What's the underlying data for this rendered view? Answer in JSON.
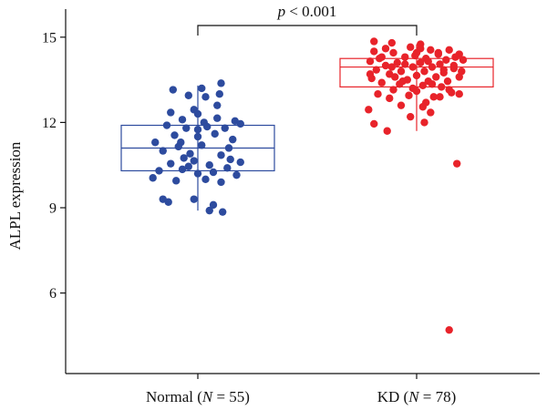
{
  "chart_data": {
    "type": "scatter",
    "subtype": "box-plot-with-jitter",
    "title": "",
    "xlabel": "",
    "ylabel": "ALPL expression",
    "ylim": [
      3.8,
      16.0
    ],
    "yticks": [
      6,
      9,
      12,
      15
    ],
    "annotation": {
      "prefix": "p",
      "text": " < 0.001"
    },
    "colors": {
      "Normal": "#2d4b9e",
      "KD": "#e8232a",
      "axis": "#111111"
    },
    "groups": [
      {
        "name": "Normal",
        "label": "Normal (",
        "n_label": "N = 55",
        "label_close": ")",
        "box": {
          "whisker_low": 8.9,
          "q1": 10.3,
          "median": 11.1,
          "q3": 11.9,
          "whisker_high": 13.3
        },
        "points": [
          {
            "dx": -0.32,
            "y": 13.15
          },
          {
            "dx": 0.05,
            "y": 13.2
          },
          {
            "dx": 0.3,
            "y": 13.38
          },
          {
            "dx": -0.12,
            "y": 12.95
          },
          {
            "dx": 0.1,
            "y": 12.9
          },
          {
            "dx": 0.28,
            "y": 13.0
          },
          {
            "dx": -0.05,
            "y": 12.45
          },
          {
            "dx": 0.0,
            "y": 12.3
          },
          {
            "dx": 0.25,
            "y": 12.6
          },
          {
            "dx": -0.2,
            "y": 12.1
          },
          {
            "dx": 0.08,
            "y": 12.0
          },
          {
            "dx": 0.48,
            "y": 12.05
          },
          {
            "dx": -0.4,
            "y": 11.9
          },
          {
            "dx": -0.15,
            "y": 11.8
          },
          {
            "dx": 0.12,
            "y": 11.85
          },
          {
            "dx": 0.35,
            "y": 11.8
          },
          {
            "dx": 0.55,
            "y": 11.95
          },
          {
            "dx": -0.3,
            "y": 11.55
          },
          {
            "dx": 0.0,
            "y": 11.5
          },
          {
            "dx": 0.22,
            "y": 11.6
          },
          {
            "dx": -0.55,
            "y": 11.3
          },
          {
            "dx": -0.22,
            "y": 11.3
          },
          {
            "dx": 0.05,
            "y": 11.2
          },
          {
            "dx": 0.4,
            "y": 11.1
          },
          {
            "dx": -0.45,
            "y": 11.0
          },
          {
            "dx": -0.1,
            "y": 10.9
          },
          {
            "dx": 0.3,
            "y": 10.85
          },
          {
            "dx": 0.55,
            "y": 10.6
          },
          {
            "dx": -0.35,
            "y": 10.55
          },
          {
            "dx": -0.05,
            "y": 10.65
          },
          {
            "dx": 0.15,
            "y": 10.5
          },
          {
            "dx": 0.42,
            "y": 10.7
          },
          {
            "dx": -0.5,
            "y": 10.3
          },
          {
            "dx": -0.2,
            "y": 10.35
          },
          {
            "dx": 0.0,
            "y": 10.2
          },
          {
            "dx": 0.2,
            "y": 10.25
          },
          {
            "dx": 0.38,
            "y": 10.4
          },
          {
            "dx": -0.58,
            "y": 10.05
          },
          {
            "dx": -0.28,
            "y": 9.95
          },
          {
            "dx": 0.1,
            "y": 10.0
          },
          {
            "dx": 0.3,
            "y": 9.9
          },
          {
            "dx": -0.45,
            "y": 9.3
          },
          {
            "dx": -0.38,
            "y": 9.2
          },
          {
            "dx": -0.05,
            "y": 9.3
          },
          {
            "dx": 0.2,
            "y": 9.1
          },
          {
            "dx": 0.15,
            "y": 8.9
          },
          {
            "dx": 0.32,
            "y": 8.85
          },
          {
            "dx": -0.25,
            "y": 11.15
          },
          {
            "dx": 0.45,
            "y": 11.4
          },
          {
            "dx": -0.12,
            "y": 10.45
          },
          {
            "dx": 0.25,
            "y": 12.15
          },
          {
            "dx": -0.35,
            "y": 12.35
          },
          {
            "dx": 0.0,
            "y": 11.75
          },
          {
            "dx": -0.18,
            "y": 10.75
          },
          {
            "dx": 0.5,
            "y": 10.15
          }
        ]
      },
      {
        "name": "KD",
        "label": "KD (",
        "n_label": "N = 78",
        "label_close": ")",
        "box": {
          "whisker_low": 11.7,
          "q1": 13.25,
          "median": 13.95,
          "q3": 14.25,
          "whisker_high": 14.75
        },
        "points": [
          {
            "dx": -0.55,
            "y": 14.85
          },
          {
            "dx": -0.32,
            "y": 14.8
          },
          {
            "dx": 0.05,
            "y": 14.75
          },
          {
            "dx": -0.08,
            "y": 14.65
          },
          {
            "dx": 0.18,
            "y": 14.55
          },
          {
            "dx": 0.42,
            "y": 14.55
          },
          {
            "dx": -0.55,
            "y": 14.5
          },
          {
            "dx": -0.3,
            "y": 14.45
          },
          {
            "dx": 0.0,
            "y": 14.45
          },
          {
            "dx": 0.28,
            "y": 14.4
          },
          {
            "dx": 0.55,
            "y": 14.4
          },
          {
            "dx": -0.45,
            "y": 14.3
          },
          {
            "dx": -0.15,
            "y": 14.3
          },
          {
            "dx": 0.12,
            "y": 14.25
          },
          {
            "dx": 0.38,
            "y": 14.2
          },
          {
            "dx": 0.6,
            "y": 14.2
          },
          {
            "dx": -0.6,
            "y": 14.15
          },
          {
            "dx": -0.25,
            "y": 14.1
          },
          {
            "dx": 0.05,
            "y": 14.1
          },
          {
            "dx": 0.3,
            "y": 14.05
          },
          {
            "dx": -0.4,
            "y": 14.0
          },
          {
            "dx": -0.05,
            "y": 13.95
          },
          {
            "dx": 0.2,
            "y": 13.95
          },
          {
            "dx": 0.48,
            "y": 13.9
          },
          {
            "dx": -0.52,
            "y": 13.85
          },
          {
            "dx": -0.2,
            "y": 13.8
          },
          {
            "dx": 0.1,
            "y": 13.8
          },
          {
            "dx": 0.35,
            "y": 13.75
          },
          {
            "dx": -0.35,
            "y": 13.7
          },
          {
            "dx": 0.0,
            "y": 13.65
          },
          {
            "dx": 0.25,
            "y": 13.6
          },
          {
            "dx": 0.55,
            "y": 13.6
          },
          {
            "dx": -0.58,
            "y": 13.55
          },
          {
            "dx": -0.12,
            "y": 13.5
          },
          {
            "dx": 0.15,
            "y": 13.45
          },
          {
            "dx": 0.4,
            "y": 13.45
          },
          {
            "dx": -0.45,
            "y": 13.4
          },
          {
            "dx": -0.22,
            "y": 13.35
          },
          {
            "dx": 0.08,
            "y": 13.3
          },
          {
            "dx": 0.32,
            "y": 13.25
          },
          {
            "dx": -0.3,
            "y": 13.15
          },
          {
            "dx": 0.0,
            "y": 13.1
          },
          {
            "dx": 0.45,
            "y": 13.05
          },
          {
            "dx": -0.5,
            "y": 13.0
          },
          {
            "dx": -0.1,
            "y": 12.95
          },
          {
            "dx": 0.22,
            "y": 12.9
          },
          {
            "dx": 0.55,
            "y": 13.0
          },
          {
            "dx": -0.35,
            "y": 12.85
          },
          {
            "dx": 0.12,
            "y": 12.7
          },
          {
            "dx": -0.2,
            "y": 12.6
          },
          {
            "dx": 0.08,
            "y": 12.55
          },
          {
            "dx": -0.08,
            "y": 12.2
          },
          {
            "dx": 0.18,
            "y": 12.35
          },
          {
            "dx": -0.62,
            "y": 12.45
          },
          {
            "dx": -0.55,
            "y": 11.95
          },
          {
            "dx": 0.1,
            "y": 12.0
          },
          {
            "dx": -0.38,
            "y": 11.7
          },
          {
            "dx": 0.05,
            "y": 14.6
          },
          {
            "dx": -0.4,
            "y": 14.6
          },
          {
            "dx": 0.5,
            "y": 14.3
          },
          {
            "dx": -0.15,
            "y": 14.05
          },
          {
            "dx": 0.35,
            "y": 13.85
          },
          {
            "dx": -0.28,
            "y": 13.6
          },
          {
            "dx": 0.2,
            "y": 13.35
          },
          {
            "dx": -0.05,
            "y": 13.2
          },
          {
            "dx": 0.58,
            "y": 13.8
          },
          {
            "dx": -0.48,
            "y": 14.25
          },
          {
            "dx": 0.15,
            "y": 14.15
          },
          {
            "dx": -0.18,
            "y": 13.45
          },
          {
            "dx": 0.42,
            "y": 13.15
          },
          {
            "dx": -0.6,
            "y": 13.7
          },
          {
            "dx": 0.28,
            "y": 14.45
          },
          {
            "dx": -0.02,
            "y": 14.35
          },
          {
            "dx": 0.48,
            "y": 14.0
          },
          {
            "dx": -0.32,
            "y": 13.95
          },
          {
            "dx": 0.3,
            "y": 12.9
          },
          {
            "dx": 0.52,
            "y": 10.55
          },
          {
            "dx": 0.42,
            "y": 4.7
          }
        ]
      }
    ]
  }
}
